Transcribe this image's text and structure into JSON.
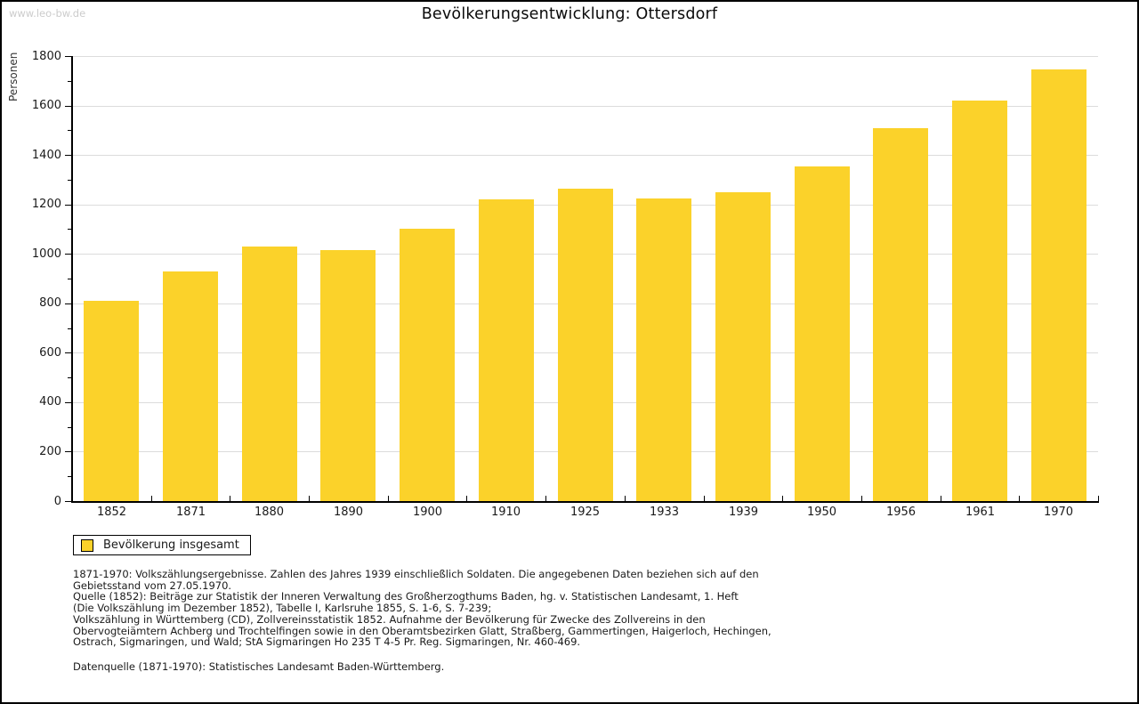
{
  "watermark": "www.leo-bw.de",
  "title": "Bevölkerungsentwicklung: Ottersdorf",
  "y_axis": {
    "label": "Personen"
  },
  "legend": {
    "label": "Bevölkerung insgesamt"
  },
  "colors": {
    "bar": "#FBD22A",
    "grid": "#DCDCDC",
    "axis": "#000000",
    "watermark": "#CCCCCC"
  },
  "chart_data": {
    "type": "bar",
    "title": "Bevölkerungsentwicklung: Ottersdorf",
    "xlabel": "",
    "ylabel": "Personen",
    "ylim": [
      0,
      1800
    ],
    "ytick_major_step": 200,
    "ytick_minor_step": 100,
    "grid": true,
    "legend_entries": [
      "Bevölkerung insgesamt"
    ],
    "legend_position": "bottom-left",
    "bar_color": "#FBD22A",
    "categories": [
      "1852",
      "1871",
      "1880",
      "1890",
      "1900",
      "1910",
      "1925",
      "1933",
      "1939",
      "1950",
      "1956",
      "1961",
      "1970"
    ],
    "values": [
      810,
      928,
      1030,
      1014,
      1100,
      1222,
      1265,
      1223,
      1251,
      1355,
      1507,
      1620,
      1745
    ]
  },
  "footnotes": {
    "lines": [
      "1871-1970: Volkszählungsergebnisse. Zahlen des Jahres 1939 einschließlich Soldaten. Die angegebenen Daten beziehen sich auf den",
      "Gebietsstand vom 27.05.1970.",
      "Quelle (1852): Beiträge zur Statistik der Inneren Verwaltung des Großherzogthums Baden, hg. v. Statistischen Landesamt, 1. Heft",
      "(Die Volkszählung im Dezember 1852), Tabelle I, Karlsruhe 1855, S. 1-6, S. 7-239;",
      "Volkszählung in Württemberg (CD), Zollvereinsstatistik 1852. Aufnahme der Bevölkerung für Zwecke des Zollvereins in den",
      "Obervogteiämtern Achberg und Trochtelfingen sowie in den Oberamtsbezirken Glatt, Straßberg, Gammertingen, Haigerloch, Hechingen,",
      "Ostrach, Sigmaringen, und Wald; StA Sigmaringen Ho 235 T 4-5 Pr. Reg. Sigmaringen, Nr. 460-469."
    ],
    "datasource": "Datenquelle (1871-1970): Statistisches Landesamt Baden-Württemberg."
  }
}
